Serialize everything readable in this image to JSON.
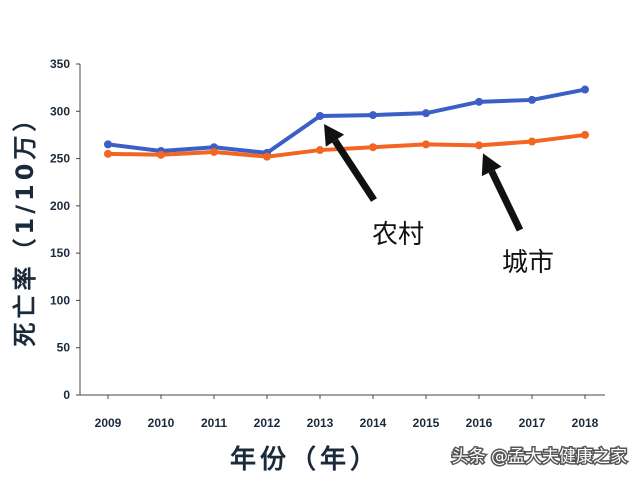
{
  "chart_data": {
    "type": "line",
    "title": "",
    "xlabel": "年份（年）",
    "ylabel": "死亡率（1/10万）",
    "categories": [
      "2009",
      "2010",
      "2011",
      "2012",
      "2013",
      "2014",
      "2015",
      "2016",
      "2017",
      "2018"
    ],
    "ylim": [
      0,
      350
    ],
    "yticks": [
      0,
      50,
      100,
      150,
      200,
      250,
      300,
      350
    ],
    "grid": false,
    "series": [
      {
        "name": "农村",
        "color": "#3b5fc6",
        "values": [
          265,
          258,
          262,
          256,
          295,
          296,
          298,
          310,
          312,
          323
        ]
      },
      {
        "name": "城市",
        "color": "#f26522",
        "values": [
          255,
          254,
          257,
          252,
          259,
          262,
          265,
          264,
          268,
          275
        ]
      }
    ],
    "annotations": [
      {
        "label": "农村",
        "points_to": {
          "series": "农村",
          "x": "2013"
        }
      },
      {
        "label": "城市",
        "points_to": {
          "series": "城市",
          "x": "2016"
        }
      }
    ]
  },
  "watermark": "头条 @孟大夫健康之家"
}
